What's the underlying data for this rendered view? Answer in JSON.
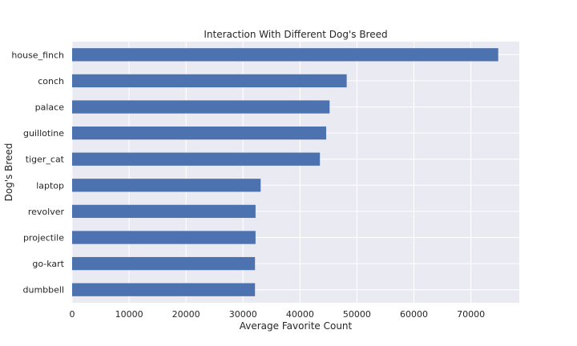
{
  "chart_data": {
    "type": "bar",
    "orientation": "horizontal",
    "title": "Interaction With Different Dog's Breed",
    "xlabel": "Average Favorite Count",
    "ylabel": "Dog's Breed",
    "categories": [
      "house_finch",
      "conch",
      "palace",
      "guillotine",
      "tiger_cat",
      "laptop",
      "revolver",
      "projectile",
      "go-kart",
      "dumbbell"
    ],
    "values": [
      74800,
      48200,
      45200,
      44600,
      43500,
      33100,
      32200,
      32200,
      32100,
      32100
    ],
    "xlim": [
      0,
      78500
    ],
    "xticks": [
      0,
      10000,
      20000,
      30000,
      40000,
      50000,
      60000,
      70000
    ],
    "grid": true,
    "colors": {
      "bar": "#4c72b0",
      "background": "#eaeaf2",
      "grid": "#ffffff"
    }
  }
}
